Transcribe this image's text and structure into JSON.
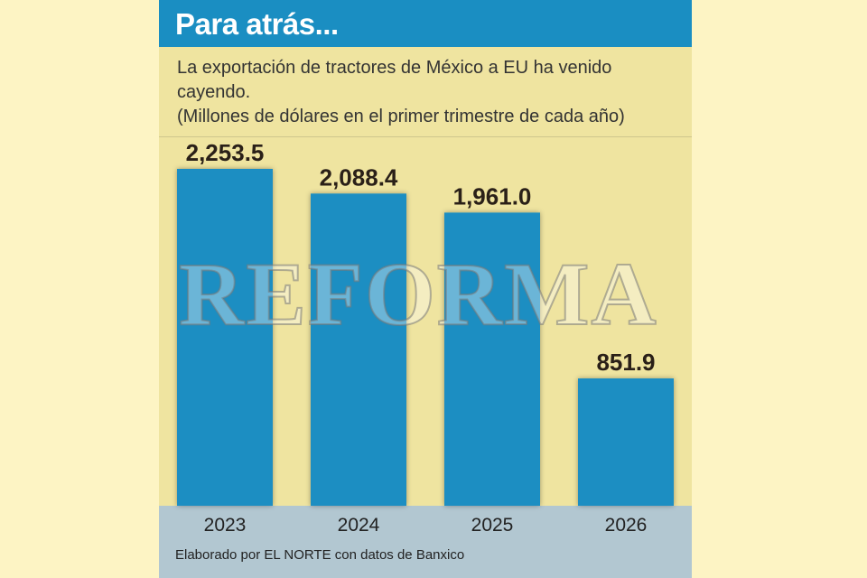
{
  "header": {
    "title": "Para atrás..."
  },
  "subtitle": {
    "line1": "La exportación de tractores de México a EU ha venido cayendo.",
    "line2": "(Millones de dólares en el primer trimestre de cada año)"
  },
  "watermark": "REFORMA",
  "source": "Elaborado por EL NORTE con datos de Banxico",
  "colors": {
    "header": "#1a8ec2",
    "bar": "#1a8ec2",
    "panel": "#efe4a0",
    "axis_band": "#b2c7d1",
    "page": "#fdf4c4"
  },
  "chart_data": {
    "type": "bar",
    "categories": [
      "2023",
      "2024",
      "2025",
      "2026"
    ],
    "values": [
      2253.5,
      2088.4,
      1961.0,
      851.9
    ],
    "value_labels": [
      "2,253.5",
      "2,088.4",
      "1,961.0",
      "851.9"
    ],
    "ylim": [
      0,
      2253.5
    ],
    "grid": false,
    "legend": "none"
  }
}
